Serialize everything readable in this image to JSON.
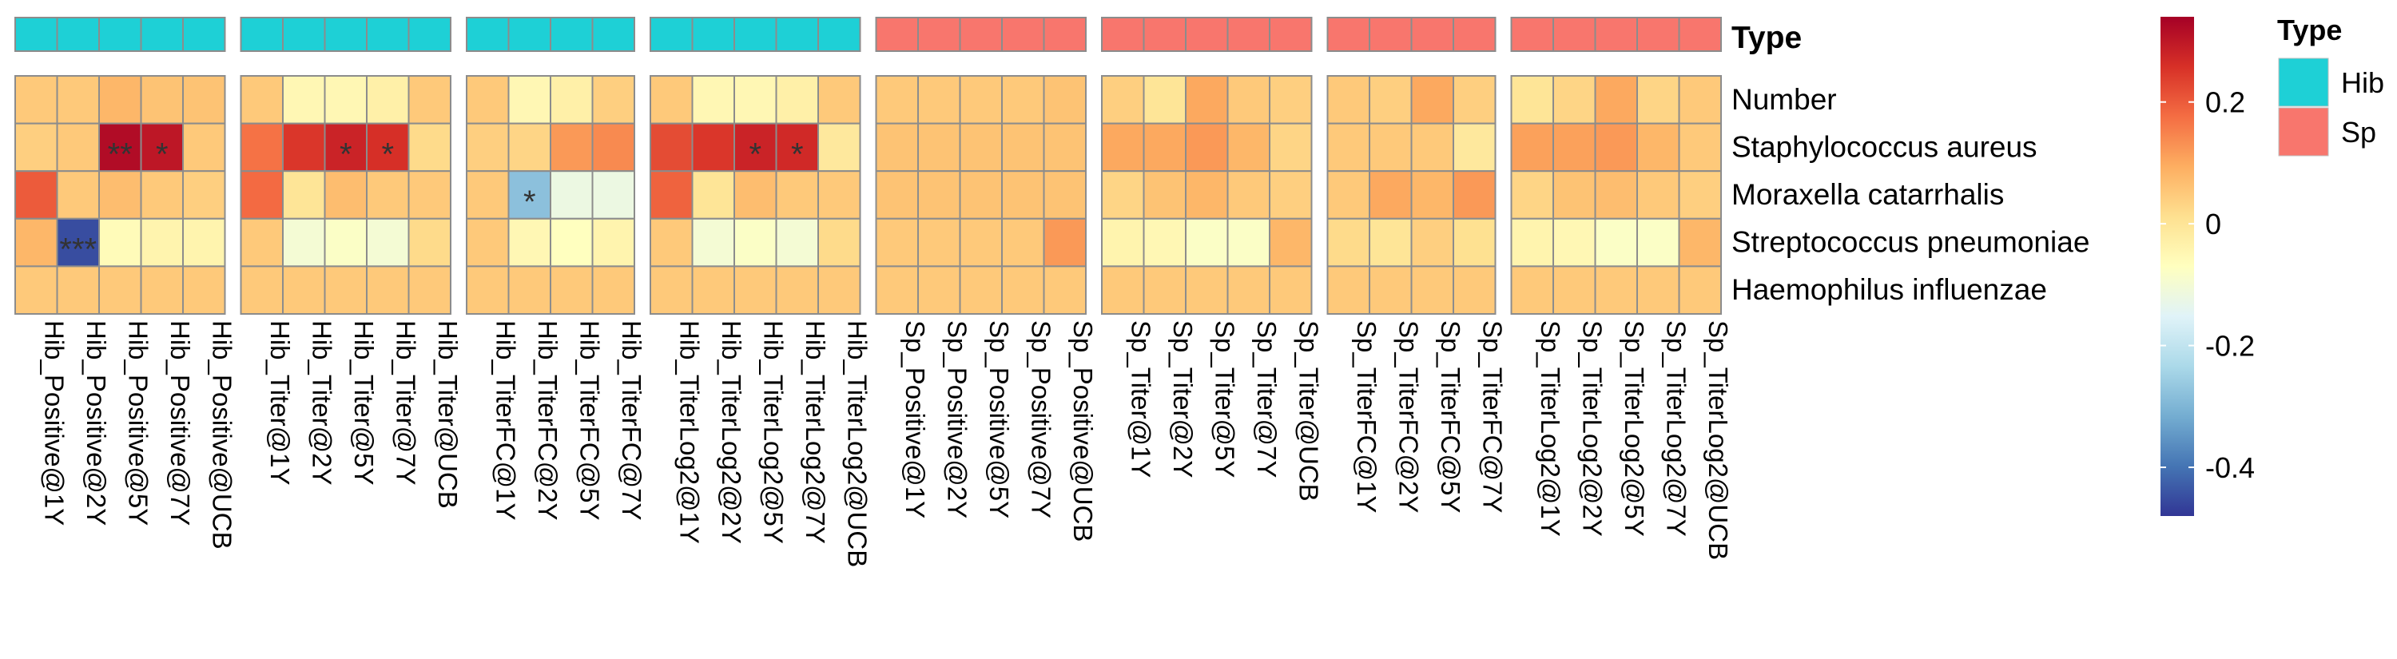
{
  "chart_data": {
    "type": "heatmap",
    "rows": [
      "Number",
      "Staphylococcus aureus",
      "Moraxella catarrhalis",
      "Streptococcus pneumoniae",
      "Haemophilus influenzae"
    ],
    "groups": [
      {
        "type": "Hib",
        "columns": [
          "Hib_Positive@1Y",
          "Hib_Positive@2Y",
          "Hib_Positive@5Y",
          "Hib_Positive@7Y",
          "Hib_Positive@UCB"
        ]
      },
      {
        "type": "Hib",
        "columns": [
          "Hib_Titer@1Y",
          "Hib_Titer@2Y",
          "Hib_Titer@5Y",
          "Hib_Titer@7Y",
          "Hib_Titer@UCB"
        ]
      },
      {
        "type": "Hib",
        "columns": [
          "Hib_TiterFC@1Y",
          "Hib_TiterFC@2Y",
          "Hib_TiterFC@5Y",
          "Hib_TiterFC@7Y"
        ]
      },
      {
        "type": "Hib",
        "columns": [
          "Hib_TiterLog2@1Y",
          "Hib_TiterLog2@2Y",
          "Hib_TiterLog2@5Y",
          "Hib_TiterLog2@7Y",
          "Hib_TiterLog2@UCB"
        ]
      },
      {
        "type": "Sp",
        "columns": [
          "Sp_Positive@1Y",
          "Sp_Positive@2Y",
          "Sp_Positive@5Y",
          "Sp_Positive@7Y",
          "Sp_Positive@UCB"
        ]
      },
      {
        "type": "Sp",
        "columns": [
          "Sp_Titer@1Y",
          "Sp_Titer@2Y",
          "Sp_Titer@5Y",
          "Sp_Titer@7Y",
          "Sp_Titer@UCB"
        ]
      },
      {
        "type": "Sp",
        "columns": [
          "Sp_TiterFC@1Y",
          "Sp_TiterFC@2Y",
          "Sp_TiterFC@5Y",
          "Sp_TiterFC@7Y"
        ]
      },
      {
        "type": "Sp",
        "columns": [
          "Sp_TiterLog2@1Y",
          "Sp_TiterLog2@2Y",
          "Sp_TiterLog2@5Y",
          "Sp_TiterLog2@7Y",
          "Sp_TiterLog2@UCB"
        ]
      }
    ],
    "values": [
      [
        [
          0.05,
          0.05,
          0.08,
          0.06,
          0.06
        ],
        [
          0.04,
          0.05,
          0.32,
          0.3,
          0.05
        ],
        [
          0.2,
          0.05,
          0.07,
          0.05,
          0.04
        ],
        [
          0.08,
          -0.45,
          -0.06,
          -0.04,
          -0.04
        ],
        [
          0.05,
          0.05,
          0.05,
          0.05,
          0.05
        ]
      ],
      [
        [
          0.05,
          -0.05,
          -0.05,
          -0.03,
          0.05
        ],
        [
          0.17,
          0.25,
          0.28,
          0.26,
          0.02
        ],
        [
          0.18,
          0.0,
          0.07,
          0.05,
          0.05
        ],
        [
          0.05,
          -0.1,
          -0.08,
          -0.1,
          0.02
        ],
        [
          0.05,
          0.05,
          0.05,
          0.05,
          0.05
        ]
      ],
      [
        [
          0.05,
          -0.05,
          -0.03,
          0.04
        ],
        [
          0.04,
          0.03,
          0.12,
          0.14
        ],
        [
          0.05,
          -0.28,
          -0.12,
          -0.12
        ],
        [
          0.05,
          -0.05,
          -0.07,
          -0.04
        ],
        [
          0.05,
          0.05,
          0.05,
          0.05
        ]
      ],
      [
        [
          0.05,
          -0.05,
          -0.05,
          -0.03,
          0.05
        ],
        [
          0.22,
          0.25,
          0.28,
          0.27,
          -0.01
        ],
        [
          0.19,
          0.0,
          0.07,
          0.05,
          0.05
        ],
        [
          0.05,
          -0.1,
          -0.08,
          -0.1,
          0.02
        ],
        [
          0.05,
          0.05,
          0.05,
          0.05,
          0.05
        ]
      ],
      [
        [
          0.05,
          0.05,
          0.05,
          0.05,
          0.06
        ],
        [
          0.06,
          0.06,
          0.06,
          0.06,
          0.06
        ],
        [
          0.06,
          0.06,
          0.06,
          0.06,
          0.06
        ],
        [
          0.05,
          0.05,
          0.05,
          0.05,
          0.12
        ],
        [
          0.05,
          0.05,
          0.05,
          0.05,
          0.05
        ]
      ],
      [
        [
          0.04,
          0.0,
          0.1,
          0.05,
          0.04
        ],
        [
          0.1,
          0.1,
          0.12,
          0.08,
          0.03
        ],
        [
          0.03,
          0.06,
          0.08,
          0.05,
          0.04
        ],
        [
          -0.04,
          -0.05,
          -0.08,
          -0.08,
          0.08
        ],
        [
          0.05,
          0.05,
          0.05,
          0.05,
          0.05
        ]
      ],
      [
        [
          0.05,
          0.04,
          0.1,
          0.04
        ],
        [
          0.05,
          0.05,
          0.05,
          -0.01
        ],
        [
          0.05,
          0.1,
          0.08,
          0.12
        ],
        [
          0.02,
          0.0,
          0.04,
          0.01
        ],
        [
          0.05,
          0.05,
          0.05,
          0.05
        ]
      ],
      [
        [
          0.0,
          0.03,
          0.1,
          0.03,
          0.05
        ],
        [
          0.11,
          0.11,
          0.12,
          0.08,
          0.05
        ],
        [
          0.03,
          0.06,
          0.07,
          0.05,
          0.04
        ],
        [
          -0.04,
          -0.05,
          -0.08,
          -0.08,
          0.08
        ],
        [
          0.05,
          0.05,
          0.05,
          0.05,
          0.05
        ]
      ]
    ],
    "significance": [
      {
        "group": 0,
        "row": 1,
        "col": 2,
        "label": "**"
      },
      {
        "group": 0,
        "row": 1,
        "col": 3,
        "label": "*"
      },
      {
        "group": 0,
        "row": 3,
        "col": 1,
        "label": "***"
      },
      {
        "group": 1,
        "row": 1,
        "col": 2,
        "label": "*"
      },
      {
        "group": 1,
        "row": 1,
        "col": 3,
        "label": "*"
      },
      {
        "group": 2,
        "row": 2,
        "col": 1,
        "label": "*"
      },
      {
        "group": 3,
        "row": 1,
        "col": 2,
        "label": "*"
      },
      {
        "group": 3,
        "row": 1,
        "col": 3,
        "label": "*"
      }
    ],
    "annotation": {
      "title": "Type",
      "row_label": "Type",
      "legend": [
        {
          "label": "Hib",
          "color": "#1ed0d6"
        },
        {
          "label": "Sp",
          "color": "#f8766d"
        }
      ]
    },
    "colorbar": {
      "range": [
        -0.48,
        0.34
      ],
      "ticks": [
        0.2,
        0,
        -0.2,
        -0.4
      ],
      "tick_labels": [
        "0.2",
        "0",
        "-0.2",
        "-0.4"
      ],
      "palette": [
        "#313695",
        "#4575b4",
        "#74add1",
        "#abd9e9",
        "#e0f3f8",
        "#ffffbf",
        "#fee090",
        "#fdae61",
        "#f46d43",
        "#d73027",
        "#a50026"
      ]
    }
  }
}
